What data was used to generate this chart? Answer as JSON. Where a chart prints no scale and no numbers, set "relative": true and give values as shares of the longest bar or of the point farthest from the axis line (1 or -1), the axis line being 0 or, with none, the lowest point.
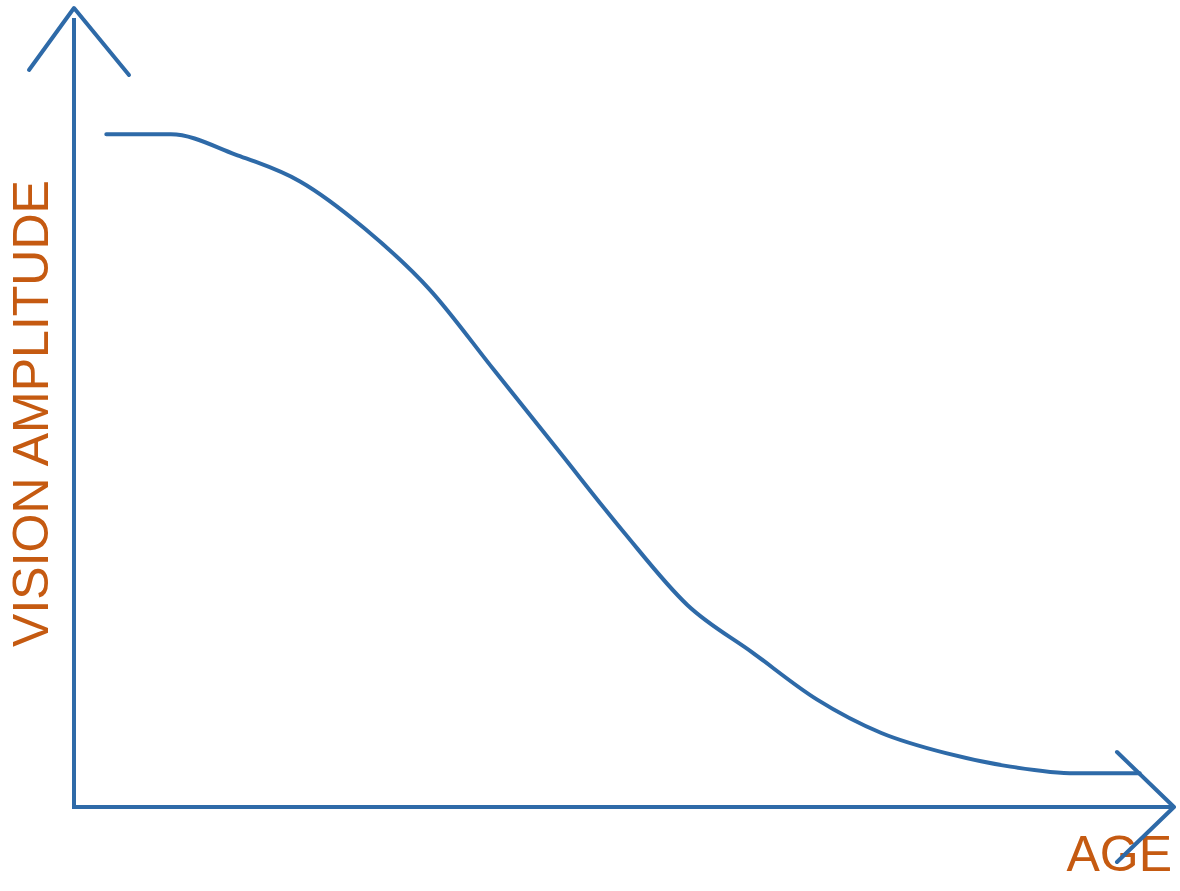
{
  "chart_data": {
    "type": "line",
    "xlabel": "AGE",
    "ylabel": "VISION AMPLITUDE",
    "relative": true,
    "categories": [
      null,
      null,
      null,
      null,
      null,
      null,
      null,
      null,
      null,
      null,
      null,
      null,
      null,
      null,
      null,
      null,
      null
    ],
    "series": [
      {
        "color": "#2e6aa8",
        "values": [
          1,
          1,
          0.97,
          0.93,
          0.86,
          0.77,
          0.65,
          0.53,
          0.41,
          0.3,
          0.23,
          0.16,
          0.11,
          0.08,
          0.06,
          0.05,
          0.05
        ]
      }
    ],
    "grid": false,
    "legend": false,
    "marker": "none",
    "line_style": "solid"
  }
}
